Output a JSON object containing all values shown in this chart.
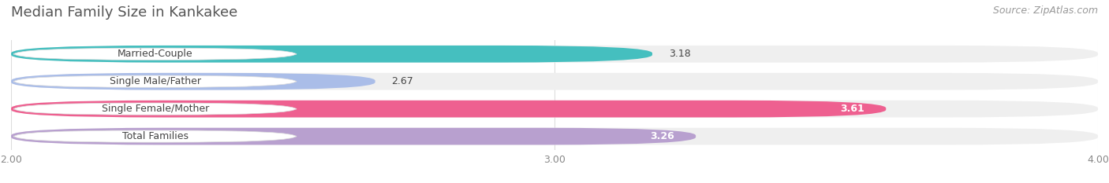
{
  "title": "Median Family Size in Kankakee",
  "source": "Source: ZipAtlas.com",
  "categories": [
    "Married-Couple",
    "Single Male/Father",
    "Single Female/Mother",
    "Total Families"
  ],
  "values": [
    3.18,
    2.67,
    3.61,
    3.26
  ],
  "bar_colors": [
    "#45BFBF",
    "#AABDE8",
    "#EE6090",
    "#B8A0CF"
  ],
  "bar_bg_colors": [
    "#EFEFEF",
    "#EFEFEF",
    "#EFEFEF",
    "#EFEFEF"
  ],
  "value_inside": [
    false,
    false,
    true,
    true
  ],
  "xlim": [
    2.0,
    4.0
  ],
  "xticks": [
    2.0,
    3.0,
    4.0
  ],
  "xtick_labels": [
    "2.00",
    "3.00",
    "4.00"
  ],
  "bar_height": 0.62,
  "bar_gap": 0.38,
  "figsize": [
    14.06,
    2.33
  ],
  "dpi": 100,
  "title_fontsize": 13,
  "label_fontsize": 9,
  "value_fontsize": 9,
  "source_fontsize": 9,
  "bg_color": "#FFFFFF"
}
